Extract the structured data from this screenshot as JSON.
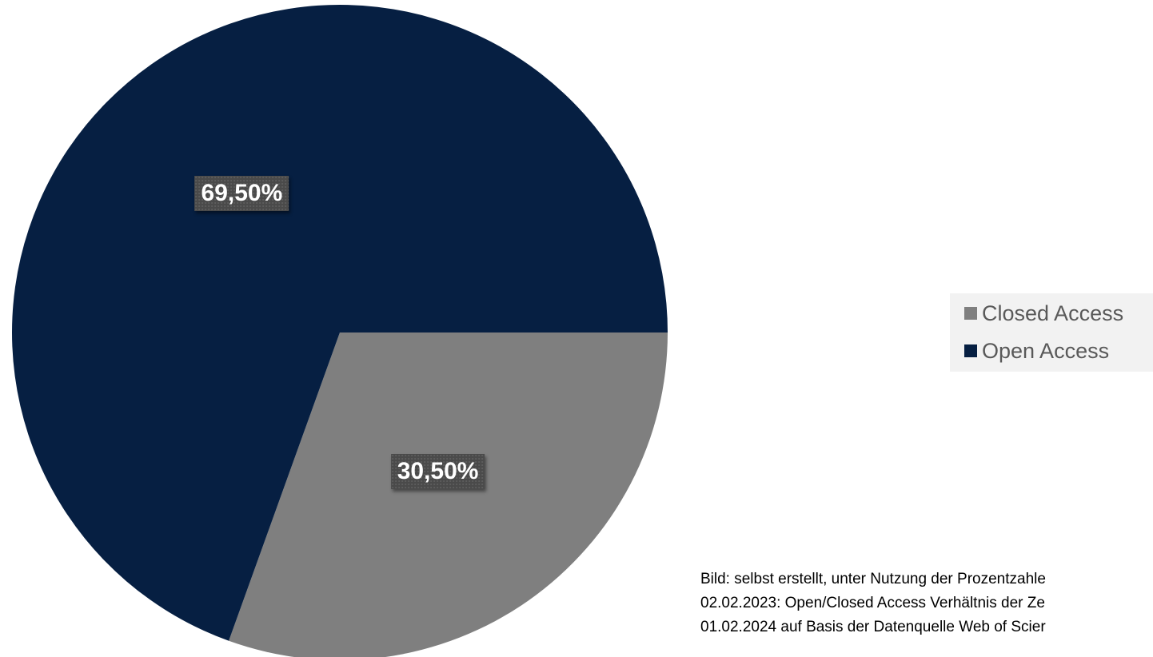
{
  "chart_data": {
    "type": "pie",
    "title": "",
    "slices": [
      {
        "label": "Closed Access",
        "value": 30.5,
        "display": "30,50%",
        "color": "#7f7f7f"
      },
      {
        "label": "Open Access",
        "value": 69.5,
        "display": "69,50%",
        "color": "#061f42"
      }
    ],
    "start_angle_deg": 90,
    "direction": "clockwise",
    "legend_position": "right"
  },
  "caption": {
    "lines": [
      "Bild: selbst erstellt, unter Nutzung der Prozentzahle",
      "02.02.2023: Open/Closed Access Verhältnis der Ze",
      "01.02.2024 auf Basis der Datenquelle Web of Scier"
    ]
  }
}
